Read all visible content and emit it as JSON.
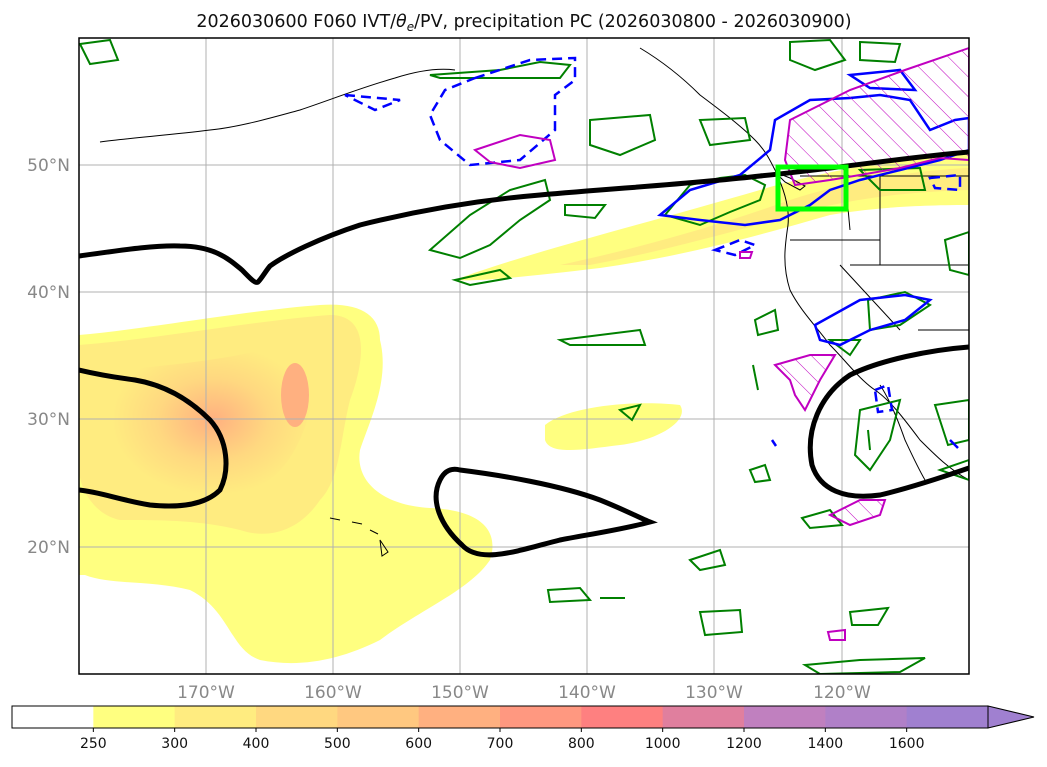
{
  "title": "2026030600 F060 IVT/θe/PV, precipitation PC (2026030800 - 2026030900)",
  "title_parts": {
    "prefix": "2026030600 F060 IVT/",
    "theta": "θ",
    "theta_sub": "e",
    "suffix": "/PV, precipitation PC (2026030800 - 2026030900)"
  },
  "map": {
    "lon_range": [
      -180,
      -110
    ],
    "lat_range": [
      10,
      60
    ],
    "lat_ticks": [
      {
        "value": 50,
        "label": "50°N"
      },
      {
        "value": 40,
        "label": "40°N"
      },
      {
        "value": 30,
        "label": "30°N"
      },
      {
        "value": 20,
        "label": "20°N"
      }
    ],
    "lon_ticks": [
      {
        "value": -170,
        "label": "170°W"
      },
      {
        "value": -160,
        "label": "160°W"
      },
      {
        "value": -150,
        "label": "150°W"
      },
      {
        "value": -140,
        "label": "140°W"
      },
      {
        "value": -130,
        "label": "130°W"
      },
      {
        "value": -120,
        "label": "120°W"
      }
    ],
    "target_box": {
      "lon": [
        -125,
        -119.5
      ],
      "lat": [
        46.8,
        50.0
      ],
      "color": "#00ff00"
    },
    "colors": {
      "theta_e_contour": "#000000",
      "precip_contour": "#008000",
      "pv_contour": "#0000ff",
      "pv_hatch": "#c000c0",
      "coastline": "#000000",
      "grid": "#b0b0b0"
    }
  },
  "colorbar": {
    "levels": [
      "250",
      "300",
      "400",
      "500",
      "600",
      "700",
      "800",
      "1000",
      "1200",
      "1400",
      "1600"
    ],
    "colors": [
      "#ffffff",
      "#ffff80",
      "#ffec80",
      "#ffd880",
      "#ffc880",
      "#ffb080",
      "#ff9880",
      "#fe8080",
      "#e07f9e",
      "#c080bf",
      "#b080c8",
      "#a080d0"
    ],
    "extend": "max"
  }
}
